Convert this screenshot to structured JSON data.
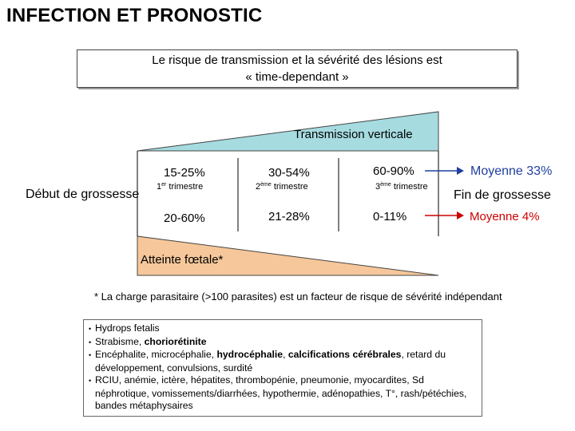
{
  "title": "INFECTION ET PRONOSTIC",
  "intro": {
    "line1": "Le risque de transmission et la sévérité des lésions est",
    "line2": "« time-dependant »"
  },
  "transmission_label": "Transmission verticale",
  "start_label": "Début de grossesse",
  "end_label": "Fin de grossesse",
  "fetal_label": "Atteinte fœtale*",
  "trimesters": [
    {
      "num": "1",
      "sup": "er",
      "label": "trimestre",
      "transmission": "15-25%",
      "fetal": "20-60%"
    },
    {
      "num": "2",
      "sup": "ème",
      "label": "trimestre",
      "transmission": "30-54%",
      "fetal": "21-28%"
    },
    {
      "num": "3",
      "sup": "ème",
      "label": "trimestre",
      "transmission": "60-90%",
      "fetal": "0-11%"
    }
  ],
  "averages": {
    "transmission": "Moyenne 33%",
    "fetal": "Moyenne  4%"
  },
  "footnote": "* La charge parasitaire (>100 parasites)  est un facteur de risque de sévérité indépendant",
  "bullets": [
    [
      {
        "t": "Hydrops fetalis",
        "b": false
      }
    ],
    [
      {
        "t": "Strabisme, ",
        "b": false
      },
      {
        "t": "choriorétinite",
        "b": true
      }
    ],
    [
      {
        "t": "Encéphalite, microcéphalie, ",
        "b": false
      },
      {
        "t": "hydrocéphalie",
        "b": true
      },
      {
        "t": ", ",
        "b": false
      },
      {
        "t": "calcifications cérébrales",
        "b": true
      },
      {
        "t": ", retard du développement, convulsions, surdité",
        "b": false
      }
    ],
    [
      {
        "t": "RCIU, anémie, ictère, hépatites, thrombopénie, pneumonie, myocardites, Sd néphrotique, vomissements/diarrhées, hypothermie, adénopathies, T°, rash/pétéchies, bandes métaphysaires",
        "b": false
      }
    ]
  ],
  "colors": {
    "transmission_wedge": "#a6dbe0",
    "fetal_wedge": "#f6c79a",
    "arrow_top": "#1f3fa0",
    "arrow_bottom": "#cc0000",
    "transmission_avg_text": "#1f3fa0",
    "fetal_avg_text": "#cc0000"
  }
}
